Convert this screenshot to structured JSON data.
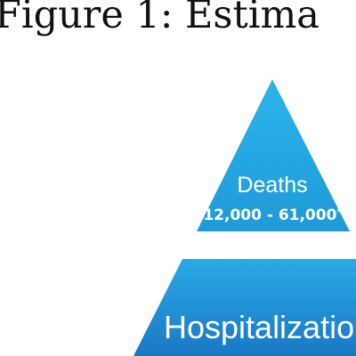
{
  "title": "Figure 1: Estima",
  "tiers": [
    {
      "label": "Deaths",
      "value": "12,000 - 61,000",
      "value_mark": "*",
      "color_light": "#2cb4ec",
      "color_dark": "#1f9ad6"
    },
    {
      "label": "Hospitalizatio",
      "color_light": "#2aa9e6",
      "color_dark": "#1a78c4"
    }
  ]
}
